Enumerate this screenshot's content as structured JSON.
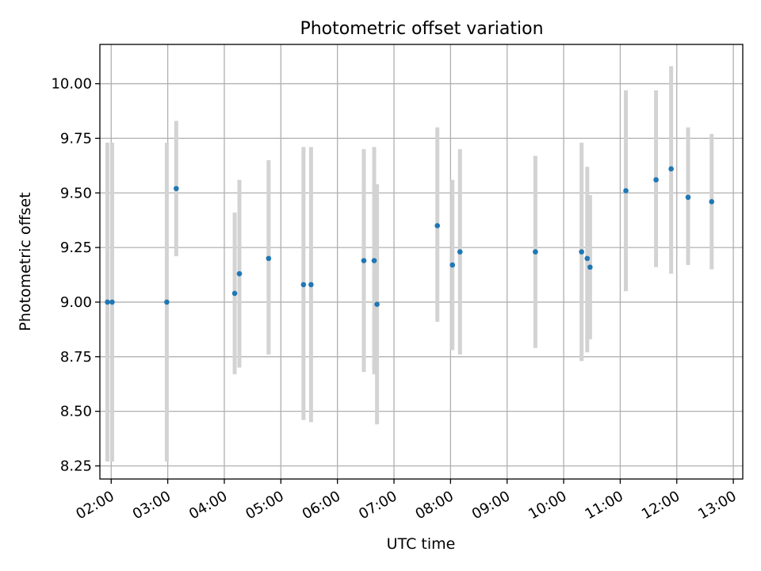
{
  "chart_data": {
    "type": "scatter",
    "title": "Photometric offset variation",
    "xlabel": "UTC time",
    "ylabel": "Photometric offset",
    "xlim": [
      "01:48",
      "13:10"
    ],
    "ylim": [
      8.19,
      10.18
    ],
    "grid": true,
    "x_ticks": [
      "02:00",
      "03:00",
      "04:00",
      "05:00",
      "06:00",
      "07:00",
      "08:00",
      "09:00",
      "10:00",
      "11:00",
      "12:00",
      "13:00"
    ],
    "y_ticks": [
      "8.25",
      "8.50",
      "8.75",
      "9.00",
      "9.25",
      "9.50",
      "9.75",
      "10.00"
    ],
    "point_color": "#1f77b4",
    "errorbar_color": "#d3d3d3",
    "points": [
      {
        "x": "01:56",
        "y": 9.0,
        "low": 8.27,
        "high": 9.73
      },
      {
        "x": "02:01",
        "y": 9.0,
        "low": 8.27,
        "high": 9.73
      },
      {
        "x": "02:59",
        "y": 9.0,
        "low": 8.27,
        "high": 9.73
      },
      {
        "x": "03:09",
        "y": 9.52,
        "low": 9.21,
        "high": 9.83
      },
      {
        "x": "04:11",
        "y": 9.04,
        "low": 8.67,
        "high": 9.41
      },
      {
        "x": "04:16",
        "y": 9.13,
        "low": 8.7,
        "high": 9.56
      },
      {
        "x": "04:47",
        "y": 9.2,
        "low": 8.76,
        "high": 9.65
      },
      {
        "x": "05:24",
        "y": 9.08,
        "low": 8.46,
        "high": 9.71
      },
      {
        "x": "05:32",
        "y": 9.08,
        "low": 8.45,
        "high": 9.71
      },
      {
        "x": "06:28",
        "y": 9.19,
        "low": 8.68,
        "high": 9.7
      },
      {
        "x": "06:39",
        "y": 9.19,
        "low": 8.67,
        "high": 9.71
      },
      {
        "x": "06:42",
        "y": 8.99,
        "low": 8.44,
        "high": 9.54
      },
      {
        "x": "07:46",
        "y": 9.35,
        "low": 8.91,
        "high": 9.8
      },
      {
        "x": "08:02",
        "y": 9.17,
        "low": 8.78,
        "high": 9.56
      },
      {
        "x": "08:10",
        "y": 9.23,
        "low": 8.76,
        "high": 9.7
      },
      {
        "x": "09:30",
        "y": 9.23,
        "low": 8.79,
        "high": 9.67
      },
      {
        "x": "10:19",
        "y": 9.23,
        "low": 8.73,
        "high": 9.73
      },
      {
        "x": "10:25",
        "y": 9.2,
        "low": 8.77,
        "high": 9.62
      },
      {
        "x": "10:28",
        "y": 9.16,
        "low": 8.83,
        "high": 9.49
      },
      {
        "x": "11:06",
        "y": 9.51,
        "low": 9.05,
        "high": 9.97
      },
      {
        "x": "11:38",
        "y": 9.56,
        "low": 9.16,
        "high": 9.97
      },
      {
        "x": "11:54",
        "y": 9.61,
        "low": 9.13,
        "high": 10.08
      },
      {
        "x": "12:12",
        "y": 9.48,
        "low": 9.17,
        "high": 9.8
      },
      {
        "x": "12:37",
        "y": 9.46,
        "low": 9.15,
        "high": 9.77
      }
    ]
  }
}
